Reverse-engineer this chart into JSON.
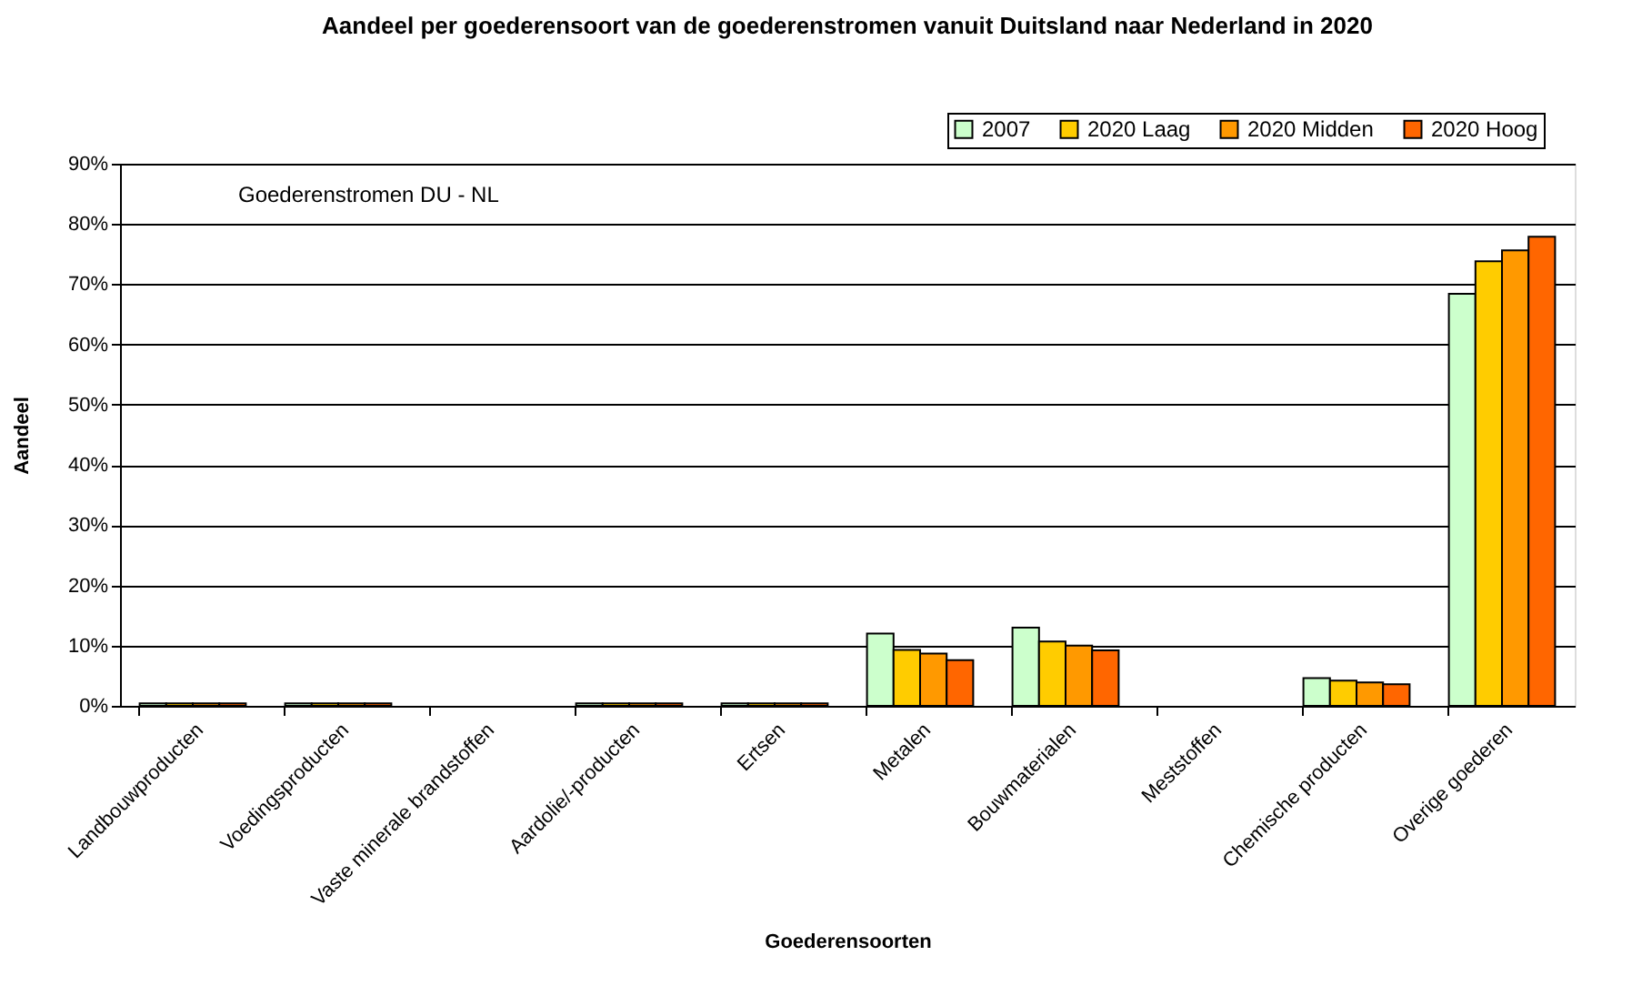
{
  "chart_data": {
    "type": "bar",
    "title": "Aandeel per goederensoort van de goederenstromen vanuit Duitsland naar Nederland in 2020",
    "xlabel": "Goederensoorten",
    "ylabel": "Aandeel",
    "categories": [
      "Landbouwproducten",
      "Voedingsproducten",
      "Vaste minerale brandstoffen",
      "Aardolie/-producten",
      "Ertsen",
      "Metalen",
      "Bouwmaterialen",
      "Meststoffen",
      "Chemische producten",
      "Overige goederen"
    ],
    "series": [
      {
        "name": "2007",
        "color": "#ccffcc",
        "values": [
          0.4,
          0.4,
          0,
          0.4,
          0.4,
          12.0,
          13.0,
          0,
          4.6,
          68.4
        ]
      },
      {
        "name": "2020 Laag",
        "color": "#ffcc00",
        "values": [
          0.4,
          0.4,
          0,
          0.4,
          0.4,
          9.3,
          10.7,
          0,
          4.2,
          73.8
        ]
      },
      {
        "name": "2020 Midden",
        "color": "#ff9900",
        "values": [
          0.4,
          0.4,
          0,
          0.4,
          0.4,
          8.7,
          10.0,
          0,
          3.9,
          75.6
        ]
      },
      {
        "name": "2020 Hoog",
        "color": "#ff6600",
        "values": [
          0.4,
          0.4,
          0,
          0.4,
          0.4,
          7.6,
          9.2,
          0,
          3.6,
          77.9
        ]
      }
    ],
    "ylim": [
      0,
      90
    ],
    "yticks": [
      {
        "value": 0,
        "label": "0%"
      },
      {
        "value": 10,
        "label": "10%"
      },
      {
        "value": 20,
        "label": "20%"
      },
      {
        "value": 30,
        "label": "30%"
      },
      {
        "value": 40,
        "label": "40%"
      },
      {
        "value": 50,
        "label": "50%"
      },
      {
        "value": 60,
        "label": "60%"
      },
      {
        "value": 70,
        "label": "70%"
      },
      {
        "value": 80,
        "label": "80%"
      },
      {
        "value": 90,
        "label": "90%"
      }
    ],
    "grid": "y",
    "legend": "top right",
    "annotations": [
      "Goederenstromen DU - NL"
    ]
  }
}
